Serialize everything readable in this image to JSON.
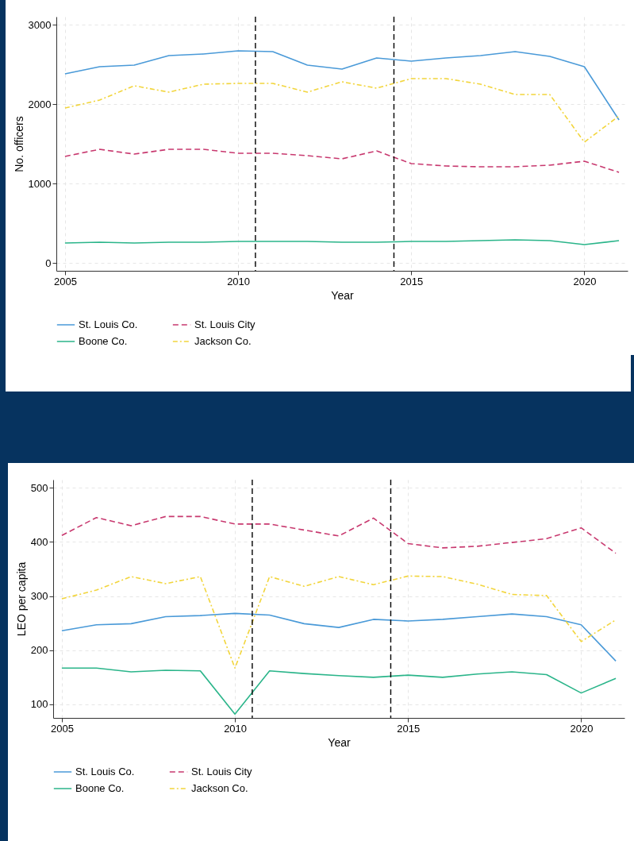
{
  "chart_data": [
    {
      "type": "line",
      "xlabel": "Year",
      "ylabel": "No. officers",
      "x": [
        2005,
        2006,
        2007,
        2008,
        2009,
        2010,
        2011,
        2012,
        2013,
        2014,
        2015,
        2016,
        2017,
        2018,
        2019,
        2020,
        2021
      ],
      "series": [
        {
          "name": "St. Louis Co.",
          "color": "#4a9ad8",
          "line_style": "solid",
          "values": [
            2380,
            2470,
            2490,
            2610,
            2630,
            2670,
            2660,
            2490,
            2440,
            2580,
            2540,
            2580,
            2610,
            2660,
            2600,
            2470,
            1800
          ]
        },
        {
          "name": "St. Louis City",
          "color": "#c8396f",
          "line_style": "dashed",
          "values": [
            1340,
            1430,
            1370,
            1430,
            1430,
            1380,
            1380,
            1350,
            1310,
            1410,
            1250,
            1220,
            1210,
            1210,
            1230,
            1280,
            1140
          ]
        },
        {
          "name": "Boone Co.",
          "color": "#2bb58a",
          "line_style": "solid",
          "values": [
            250,
            260,
            250,
            260,
            260,
            270,
            270,
            270,
            260,
            260,
            270,
            270,
            280,
            290,
            280,
            230,
            280
          ]
        },
        {
          "name": "Jackson Co.",
          "color": "#f2d53c",
          "line_style": "dashdot",
          "values": [
            1950,
            2050,
            2230,
            2150,
            2250,
            2260,
            2260,
            2150,
            2280,
            2200,
            2320,
            2320,
            2250,
            2120,
            2120,
            1520,
            1850
          ]
        }
      ],
      "xlim": [
        2004.75,
        2021.25
      ],
      "ylim": [
        -100,
        3100
      ],
      "xticks": [
        2005,
        2010,
        2015,
        2020
      ],
      "yticks": [
        0,
        1000,
        2000,
        3000
      ],
      "grid": true,
      "legend": "bottom",
      "ref_lines": [
        {
          "axis": "x",
          "value": 2010.5,
          "color": "#000000",
          "line_style": "dashed"
        },
        {
          "axis": "x",
          "value": 2014.5,
          "color": "#000000",
          "line_style": "dashed"
        }
      ]
    },
    {
      "type": "line",
      "xlabel": "Year",
      "ylabel": "LEO per capita",
      "x": [
        2005,
        2006,
        2007,
        2008,
        2009,
        2010,
        2011,
        2012,
        2013,
        2014,
        2015,
        2016,
        2017,
        2018,
        2019,
        2020,
        2021
      ],
      "series": [
        {
          "name": "St. Louis Co.",
          "color": "#4a9ad8",
          "line_style": "solid",
          "values": [
            236,
            247,
            249,
            262,
            264,
            268,
            265,
            249,
            242,
            257,
            254,
            257,
            262,
            267,
            262,
            247,
            180
          ]
        },
        {
          "name": "St. Louis City",
          "color": "#c8396f",
          "line_style": "dashed",
          "values": [
            412,
            445,
            430,
            447,
            447,
            433,
            433,
            422,
            411,
            444,
            397,
            389,
            392,
            399,
            406,
            426,
            379
          ]
        },
        {
          "name": "Boone Co.",
          "color": "#2bb58a",
          "line_style": "solid",
          "values": [
            167,
            167,
            160,
            163,
            162,
            82,
            162,
            157,
            153,
            150,
            154,
            150,
            156,
            160,
            155,
            121,
            148
          ]
        },
        {
          "name": "Jackson Co.",
          "color": "#f2d53c",
          "line_style": "dashdot",
          "values": [
            295,
            311,
            336,
            323,
            336,
            167,
            336,
            318,
            336,
            321,
            337,
            336,
            322,
            303,
            301,
            216,
            256
          ]
        }
      ],
      "xlim": [
        2004.75,
        2021.25
      ],
      "ylim": [
        75,
        515
      ],
      "xticks": [
        2005,
        2010,
        2015,
        2020
      ],
      "yticks": [
        100,
        200,
        300,
        400,
        500
      ],
      "grid": true,
      "legend": "bottom",
      "ref_lines": [
        {
          "axis": "x",
          "value": 2010.5,
          "color": "#000000",
          "line_style": "dashed"
        },
        {
          "axis": "x",
          "value": 2014.5,
          "color": "#000000",
          "line_style": "dashed"
        }
      ]
    }
  ]
}
